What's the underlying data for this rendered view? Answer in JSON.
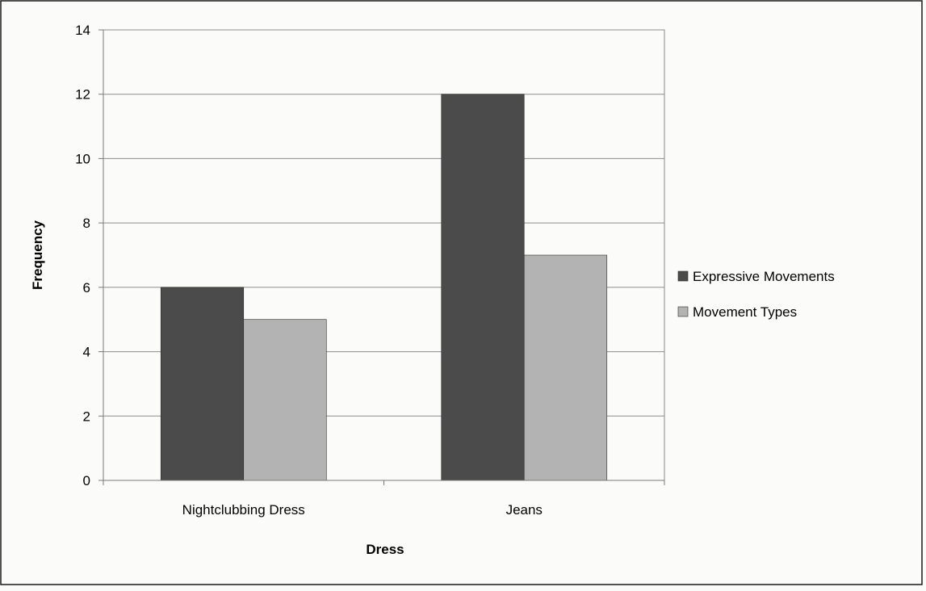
{
  "chart_data": {
    "type": "bar",
    "title": "",
    "xlabel": "Dress",
    "ylabel": "Frequency",
    "categories": [
      "Nightclubbing Dress",
      "Jeans"
    ],
    "series": [
      {
        "name": "Expressive Movements",
        "values": [
          6,
          12
        ],
        "color": "#4b4b4b"
      },
      {
        "name": "Movement Types",
        "values": [
          5,
          7
        ],
        "color": "#b3b3b3"
      }
    ],
    "ylim": [
      0,
      14
    ],
    "yticks": [
      "0",
      "2",
      "4",
      "6",
      "8",
      "10",
      "12",
      "14"
    ],
    "grid": true,
    "legend_position": "right"
  }
}
